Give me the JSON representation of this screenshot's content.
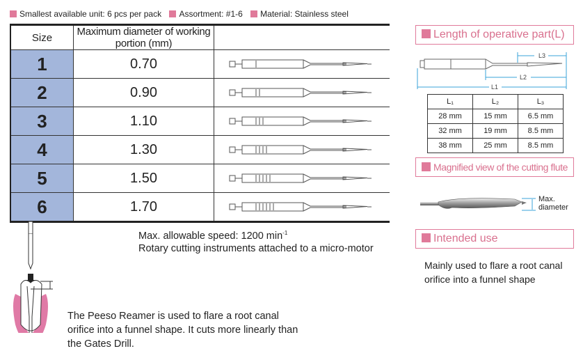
{
  "header_items": [
    "Smallest available unit: 6 pcs per pack",
    "Assortment: #1-6",
    "Material: Stainless steel"
  ],
  "table": {
    "headers": [
      "Size",
      "Maximum diameter of working portion (mm)",
      ""
    ],
    "rows": [
      {
        "size": "1",
        "diameter": "0.70",
        "rings": 1
      },
      {
        "size": "2",
        "diameter": "0.90",
        "rings": 2
      },
      {
        "size": "3",
        "diameter": "1.10",
        "rings": 3
      },
      {
        "size": "4",
        "diameter": "1.30",
        "rings": 4
      },
      {
        "size": "5",
        "diameter": "1.50",
        "rings": 5
      },
      {
        "size": "6",
        "diameter": "1.70",
        "rings": 6
      }
    ]
  },
  "length_section": {
    "title": "Length of operative part(L)",
    "labels": [
      "L1",
      "L2",
      "L3"
    ],
    "headers": [
      "L₁",
      "L₂",
      "L₃"
    ],
    "rows": [
      [
        "28 mm",
        "15 mm",
        "6.5 mm"
      ],
      [
        "32 mm",
        "19 mm",
        "8.5 mm"
      ],
      [
        "38 mm",
        "25 mm",
        "8.5 mm"
      ]
    ]
  },
  "flute_section": {
    "title": "Magnified view of the cutting flute",
    "label_line1": "Max.",
    "label_line2": "diameter"
  },
  "use_section": {
    "title": "Intended use",
    "text": "Mainly used to flare a root canal orifice into a funnel shape"
  },
  "speed_text": "Max. allowable speed: 1200 min",
  "speed_sup": "-1",
  "rotary_text": "Rotary cutting instruments attached to a micro-motor",
  "description": "The Peeso Reamer is used to flare a root canal orifice into a funnel shape. It cuts more linearly than the Gates Drill.",
  "colors": {
    "accent": "#e07a9a",
    "size_cell": "#a3b6db",
    "dimension_line": "#3aa3d8"
  }
}
